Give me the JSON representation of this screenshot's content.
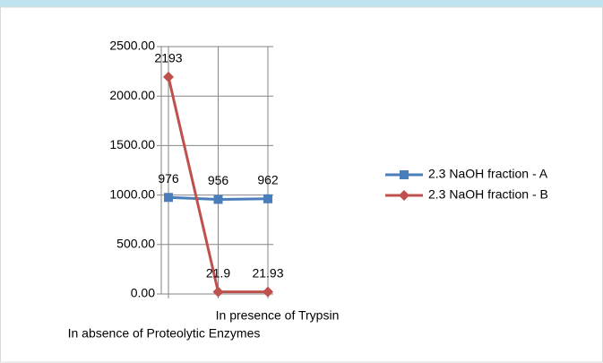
{
  "chart_data": {
    "type": "line",
    "categories": [
      "In absence of Proteolytic Enzymes",
      "In presence of Trypsin",
      null
    ],
    "series": [
      {
        "name": "2.3 NaOH fraction  - A",
        "color": "#4a7ebb",
        "marker": "square",
        "values": [
          976,
          956,
          962
        ]
      },
      {
        "name": "2.3 NaOH fraction  - B",
        "color": "#c0504d",
        "marker": "diamond",
        "values": [
          2193,
          21.9,
          21.93
        ]
      }
    ],
    "ylim": [
      0,
      2500
    ],
    "yticks": [
      {
        "value": 0,
        "label": "0.00"
      },
      {
        "value": 500,
        "label": "500.00"
      },
      {
        "value": 1000,
        "label": "1000.00"
      },
      {
        "value": 1500,
        "label": "1500.00"
      },
      {
        "value": 2000,
        "label": "2000.00"
      },
      {
        "value": 2500,
        "label": "2500.00"
      }
    ],
    "grid": true,
    "legend": "right"
  }
}
